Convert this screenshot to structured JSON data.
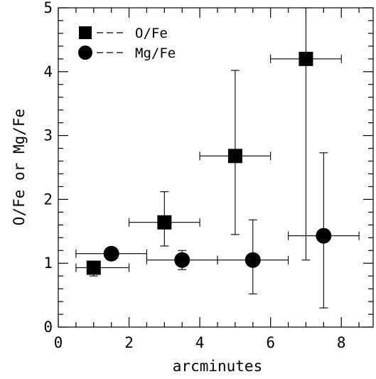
{
  "chart_data": {
    "type": "scatter",
    "title": "",
    "xlabel": "arcminutes",
    "ylabel": "O/Fe or Mg/Fe",
    "xlim": [
      0,
      8.9
    ],
    "ylim": [
      0,
      5
    ],
    "x_ticks": [
      0,
      2,
      4,
      6,
      8
    ],
    "y_ticks": [
      0,
      1,
      2,
      3,
      4,
      5
    ],
    "grid": false,
    "legend_position": "top-left",
    "series": [
      {
        "name": "O/Fe",
        "marker": "square",
        "legend_label": "O/Fe",
        "points": [
          {
            "x": 1.0,
            "y": 0.93,
            "xerr": [
              0.5,
              2.0
            ],
            "yerr": [
              0.8,
              1.0
            ]
          },
          {
            "x": 3.0,
            "y": 1.64,
            "xerr": [
              2.0,
              4.0
            ],
            "yerr": [
              1.27,
              2.12
            ]
          },
          {
            "x": 5.0,
            "y": 2.68,
            "xerr": [
              4.0,
              6.0
            ],
            "yerr": [
              1.45,
              4.02
            ]
          },
          {
            "x": 7.0,
            "y": 4.2,
            "xerr": [
              6.0,
              8.0
            ],
            "yerr": [
              1.05,
              5.0
            ]
          }
        ]
      },
      {
        "name": "Mg/Fe",
        "marker": "circle",
        "legend_label": "Mg/Fe",
        "points": [
          {
            "x": 1.5,
            "y": 1.15,
            "xerr": [
              0.5,
              2.5
            ],
            "yerr": [
              1.05,
              1.25
            ]
          },
          {
            "x": 3.5,
            "y": 1.05,
            "xerr": [
              2.5,
              4.5
            ],
            "yerr": [
              0.9,
              1.2
            ]
          },
          {
            "x": 5.5,
            "y": 1.05,
            "xerr": [
              4.5,
              6.5
            ],
            "yerr": [
              0.52,
              1.68
            ]
          },
          {
            "x": 7.5,
            "y": 1.43,
            "xerr": [
              6.5,
              8.5
            ],
            "yerr": [
              0.3,
              2.73
            ]
          }
        ]
      }
    ]
  },
  "colors": {
    "marker": "#000000",
    "axis": "#000000",
    "background": "#ffffff"
  }
}
